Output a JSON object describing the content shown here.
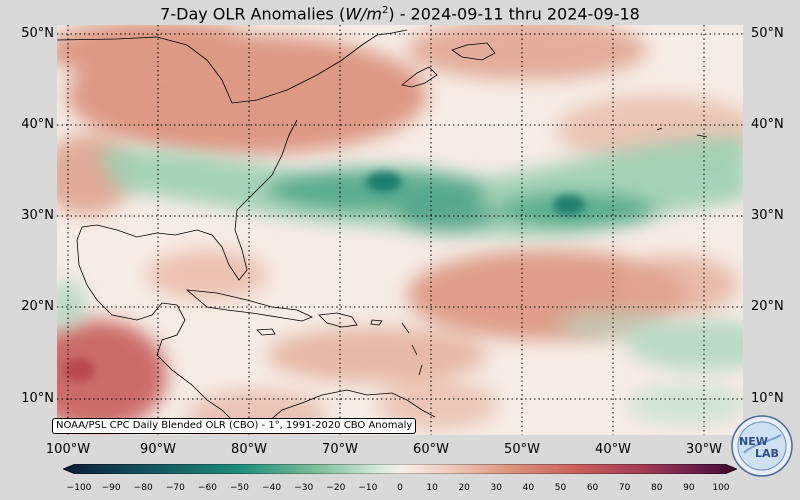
{
  "title": {
    "prefix": "7-Day OLR Anomalies (",
    "unit_base": "W/m",
    "unit_exp": "2",
    "suffix": ") - 2024-09-11 thru 2024-09-18"
  },
  "map": {
    "projection": "equirectangular",
    "lon_range": [
      -101,
      -25
    ],
    "lat_range": [
      6.5,
      51.5
    ],
    "gridlines": "dotted black"
  },
  "lat_labels": [
    "50°N",
    "40°N",
    "30°N",
    "20°N",
    "10°N"
  ],
  "lon_labels": [
    "100°W",
    "90°W",
    "80°W",
    "70°W",
    "60°W",
    "50°W",
    "40°W",
    "30°W"
  ],
  "credit": "NOAA/PSL CPC Daily Blended OLR (CBO) - 1°, 1991-2020 CBO Anomaly",
  "colorbar": {
    "ticks": [
      "−100",
      "−90",
      "−80",
      "−70",
      "−60",
      "−50",
      "−40",
      "−30",
      "−20",
      "−10",
      "0",
      "10",
      "20",
      "30",
      "40",
      "50",
      "60",
      "70",
      "80",
      "90",
      "100"
    ],
    "range": [
      -105,
      105
    ],
    "colors": {
      "strong_negative": "#0b1a3a",
      "negative": "#1d8c78",
      "weak_negative": "#a9d3b8",
      "neutral": "#f7efea",
      "weak_positive": "#e8b5a1",
      "positive": "#c8615a",
      "strong_positive": "#3a0a30"
    }
  },
  "logo": {
    "text_top": "NEW",
    "text_bottom": "LAB"
  }
}
